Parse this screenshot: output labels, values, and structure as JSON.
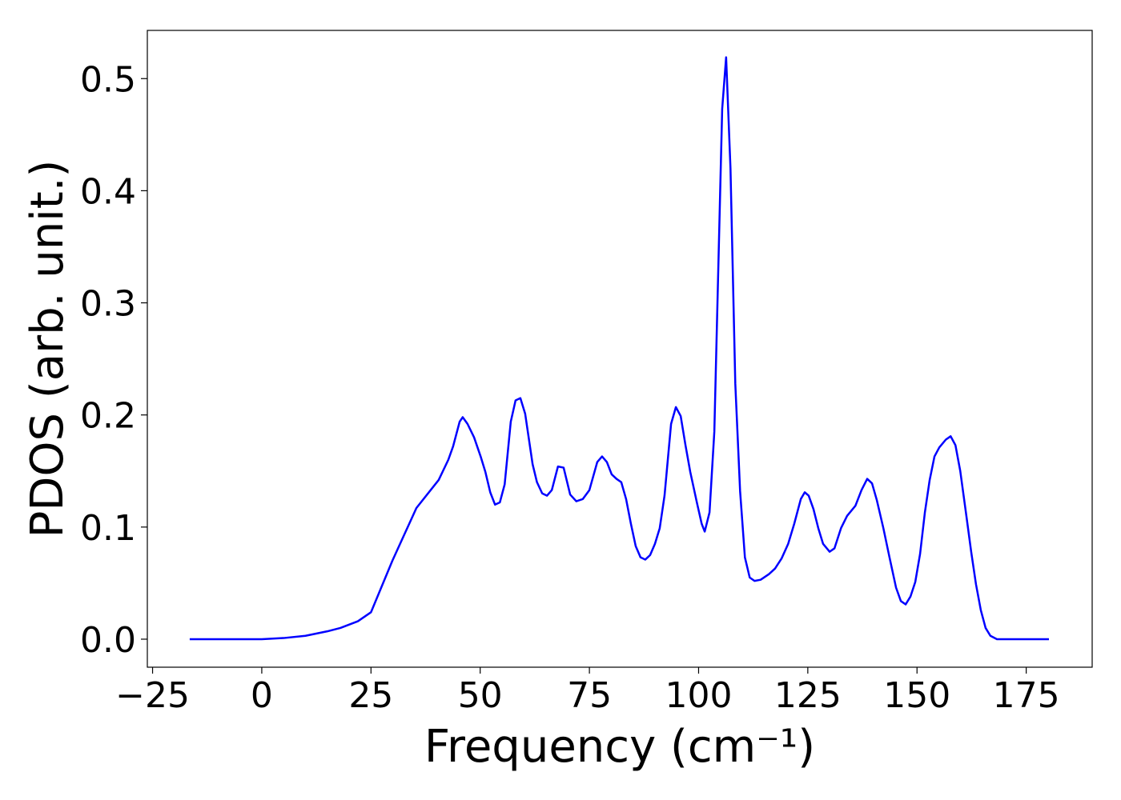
{
  "chart_data": {
    "type": "line",
    "xlabel": "Frequency (cm⁻¹)",
    "ylabel": "PDOS (arb. unit.)",
    "xlim": [
      -26.2,
      190.1
    ],
    "ylim": [
      -0.025,
      0.543
    ],
    "xticks": [
      {
        "value": -25,
        "label": "−25"
      },
      0,
      25,
      50,
      75,
      100,
      125,
      150,
      175
    ],
    "yticks": [
      {
        "value": 0,
        "label": "0.0"
      },
      0.1,
      0.2,
      0.3,
      0.4,
      0.5
    ],
    "grid": false,
    "series": [
      {
        "color": "#0000ff",
        "x": [
          -16.5,
          0,
          5,
          10,
          15,
          18,
          22,
          25,
          29.9,
          35.4,
          40.5,
          42.7,
          43.8,
          45.3,
          46,
          47.1,
          48.6,
          50.1,
          51.2,
          52.3,
          53.4,
          54.5,
          55.6,
          57,
          58.1,
          59.2,
          60.3,
          62,
          63,
          64.2,
          65.3,
          66.4,
          67.8,
          69.1,
          70.6,
          72,
          73.5,
          75,
          76.8,
          77.9,
          79,
          80.1,
          81.2,
          82.3,
          83.4,
          84.5,
          85.6,
          86.7,
          87.8,
          88.9,
          90,
          91.1,
          92.2,
          93.7,
          94.8,
          95.9,
          97,
          98.1,
          99.6,
          100.7,
          101.4,
          102.5,
          103.6,
          105.4,
          106.3,
          107.3,
          108.4,
          109.5,
          110.6,
          111.7,
          112.8,
          114.2,
          116.1,
          117.5,
          119,
          120.5,
          121.9,
          123.4,
          124.3,
          125.2,
          126.3,
          127.4,
          128.5,
          130,
          131.1,
          132.6,
          134,
          135.9,
          137.3,
          138.6,
          139.7,
          140.8,
          142.3,
          143.7,
          145.2,
          146.3,
          147.4,
          148.5,
          149.6,
          150.7,
          151.8,
          152.9,
          154,
          155.1,
          156.6,
          157.7,
          158.8,
          159.9,
          161.3,
          162.4,
          163.5,
          164.6,
          165.7,
          166.8,
          168.3,
          180.2
        ],
        "values": [
          0,
          0,
          0.001,
          0.003,
          0.007,
          0.01,
          0.016,
          0.024,
          0.07,
          0.117,
          0.142,
          0.16,
          0.172,
          0.194,
          0.198,
          0.192,
          0.18,
          0.163,
          0.149,
          0.131,
          0.12,
          0.122,
          0.138,
          0.194,
          0.213,
          0.215,
          0.201,
          0.156,
          0.14,
          0.13,
          0.128,
          0.133,
          0.154,
          0.153,
          0.129,
          0.123,
          0.125,
          0.133,
          0.158,
          0.163,
          0.158,
          0.147,
          0.143,
          0.14,
          0.125,
          0.103,
          0.083,
          0.073,
          0.071,
          0.075,
          0.085,
          0.099,
          0.128,
          0.192,
          0.207,
          0.199,
          0.173,
          0.149,
          0.122,
          0.103,
          0.096,
          0.113,
          0.185,
          0.473,
          0.519,
          0.42,
          0.228,
          0.132,
          0.073,
          0.055,
          0.052,
          0.053,
          0.058,
          0.063,
          0.072,
          0.085,
          0.103,
          0.125,
          0.131,
          0.128,
          0.116,
          0.099,
          0.085,
          0.078,
          0.081,
          0.099,
          0.11,
          0.119,
          0.133,
          0.143,
          0.139,
          0.124,
          0.099,
          0.073,
          0.046,
          0.034,
          0.031,
          0.038,
          0.051,
          0.076,
          0.113,
          0.142,
          0.163,
          0.171,
          0.178,
          0.181,
          0.173,
          0.15,
          0.11,
          0.078,
          0.049,
          0.026,
          0.01,
          0.003,
          0,
          0
        ]
      }
    ]
  }
}
